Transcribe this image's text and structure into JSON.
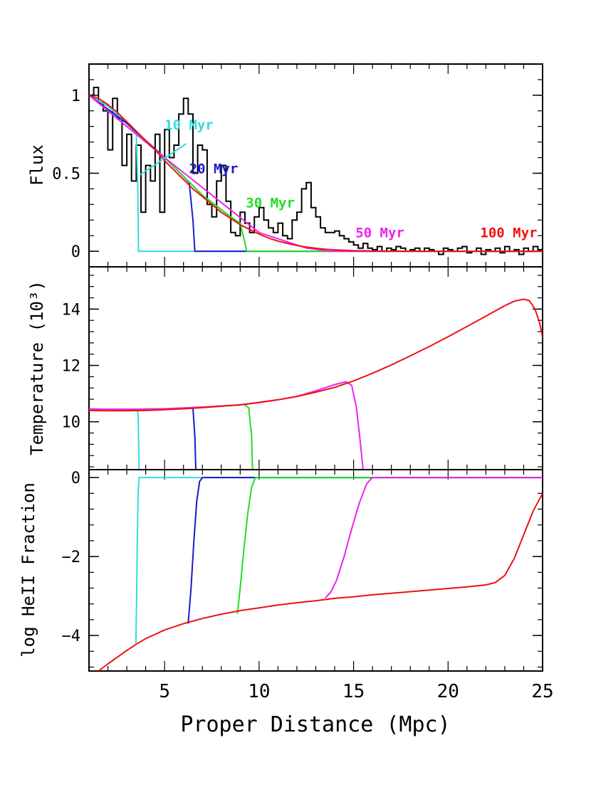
{
  "chart_data": {
    "type": "line",
    "xlabel": "Proper Distance (Mpc)",
    "xlim": [
      1,
      25
    ],
    "xticks": [
      5,
      10,
      15,
      20,
      25
    ],
    "colors": {
      "10 Myr": "#33dddd",
      "20 Myr": "#1a1acc",
      "30 Myr": "#22dd22",
      "50 Myr": "#ee22ee",
      "100 Myr": "#ee1111",
      "observed": "#000000"
    },
    "panels": [
      {
        "id": "flux",
        "ylabel": "Flux",
        "ylim": [
          -0.1,
          1.2
        ],
        "yticks": [
          0,
          0.5,
          1
        ],
        "ytick_labels": [
          "0",
          "0.5",
          "1"
        ],
        "observed_histogram": {
          "x_start": 1.0,
          "bin_width": 0.25,
          "values": [
            1.0,
            1.05,
            0.95,
            0.9,
            0.65,
            0.98,
            0.85,
            0.55,
            0.75,
            0.45,
            0.68,
            0.25,
            0.55,
            0.45,
            0.75,
            0.25,
            0.78,
            0.6,
            0.68,
            0.88,
            0.98,
            0.88,
            0.5,
            0.68,
            0.65,
            0.3,
            0.22,
            0.45,
            0.55,
            0.32,
            0.12,
            0.1,
            0.25,
            0.18,
            0.12,
            0.22,
            0.28,
            0.2,
            0.15,
            0.12,
            0.18,
            0.1,
            0.08,
            0.2,
            0.25,
            0.4,
            0.44,
            0.28,
            0.22,
            0.15,
            0.12,
            0.12,
            0.13,
            0.1,
            0.08,
            0.06,
            0.04,
            0.02,
            0.05,
            0.02,
            0.01,
            0.03,
            0.0,
            0.02,
            0.01,
            0.03,
            0.02,
            0.0,
            0.01,
            0.02,
            0.0,
            0.02,
            0.01,
            0.0,
            -0.02,
            0.02,
            0.01,
            0.0,
            0.02,
            0.03,
            -0.01,
            0.0,
            0.02,
            -0.02,
            0.01,
            0.0,
            0.02,
            -0.01,
            0.03,
            0.0,
            0.01,
            -0.02,
            0.02,
            0.0,
            0.03,
            0.01,
            0.0,
            0.02,
            0.0,
            0.04,
            0.0,
            0.02,
            0.01,
            0.0,
            0.03,
            0.01,
            0.0,
            0.02,
            0.0,
            0.01,
            0.0,
            0.0,
            0.0,
            0.0
          ]
        },
        "series": [
          {
            "name": "10 Myr",
            "color": "#33dddd",
            "x": [
              1.0,
              2.0,
              3.0,
              3.5,
              3.58,
              3.62,
              25
            ],
            "y": [
              1.0,
              0.93,
              0.82,
              0.76,
              0.4,
              0.0,
              0.0
            ]
          },
          {
            "name": "20 Myr",
            "color": "#1a1acc",
            "x": [
              1.0,
              3.0,
              5.0,
              6.0,
              6.3,
              6.5,
              6.6,
              25
            ],
            "y": [
              1.0,
              0.82,
              0.6,
              0.48,
              0.44,
              0.2,
              0.0,
              0.0
            ]
          },
          {
            "name": "30 Myr",
            "color": "#22dd22",
            "x": [
              1.0,
              5.0,
              7.0,
              8.5,
              9.0,
              9.2,
              9.35,
              25
            ],
            "y": [
              1.0,
              0.6,
              0.36,
              0.22,
              0.18,
              0.08,
              0.0,
              0.0
            ]
          },
          {
            "name": "50 Myr",
            "color": "#ee22ee",
            "x": [
              1.0,
              5.0,
              10.0,
              12.5,
              13.2,
              13.5,
              13.7,
              25
            ],
            "y": [
              1.0,
              0.6,
              0.12,
              0.02,
              0.01,
              0.004,
              0.0,
              0.0
            ]
          },
          {
            "name": "100 Myr",
            "color": "#ee1111",
            "x": [
              1.0,
              1.5,
              2.0,
              2.5,
              3.0,
              3.5,
              4.0,
              4.5,
              5.0,
              5.5,
              6.0,
              6.5,
              7.0,
              7.5,
              8.0,
              8.5,
              9.0,
              9.5,
              10.0,
              10.5,
              11.0,
              11.5,
              12.0,
              12.5,
              13.0,
              13.5,
              14.0,
              15.0,
              16.0,
              17.0,
              18.0,
              20.0,
              25.0
            ],
            "y": [
              1.0,
              0.98,
              0.94,
              0.89,
              0.83,
              0.77,
              0.71,
              0.65,
              0.58,
              0.52,
              0.46,
              0.4,
              0.35,
              0.3,
              0.25,
              0.21,
              0.17,
              0.14,
              0.11,
              0.085,
              0.065,
              0.05,
              0.037,
              0.027,
              0.019,
              0.013,
              0.009,
              0.004,
              0.002,
              0.001,
              0.0005,
              0.0,
              0.0
            ]
          }
        ],
        "annotations": [
          {
            "text": "10 Myr",
            "color": "#33dddd",
            "x": 5.0,
            "y": 0.78
          },
          {
            "text": "20 Myr",
            "color": "#1a1acc",
            "x": 6.3,
            "y": 0.5
          },
          {
            "text": "30 Myr",
            "color": "#22dd22",
            "x": 9.3,
            "y": 0.28
          },
          {
            "text": "50 Myr",
            "color": "#ee22ee",
            "x": 15.1,
            "y": 0.09
          },
          {
            "text": "100 Myr",
            "color": "#ee1111",
            "x": 21.7,
            "y": 0.09
          }
        ],
        "annotation_line": {
          "color": "#33dddd",
          "x": [
            3.7,
            6.15
          ],
          "y": [
            0.49,
            0.69
          ]
        }
      },
      {
        "id": "temperature",
        "ylabel": "Temperature (10³)",
        "ylim": [
          8.3,
          15.5
        ],
        "yticks": [
          10,
          12,
          14
        ],
        "ytick_labels": [
          "10",
          "12",
          "14"
        ],
        "series": [
          {
            "name": "10 Myr",
            "color": "#33dddd",
            "x": [
              1.0,
              2.0,
              3.0,
              3.5,
              3.6,
              3.65
            ],
            "y": [
              10.45,
              10.44,
              10.44,
              10.44,
              10.3,
              8.3
            ]
          },
          {
            "name": "20 Myr",
            "color": "#1a1acc",
            "x": [
              1.0,
              3.0,
              5.0,
              6.0,
              6.5,
              6.6,
              6.65
            ],
            "y": [
              10.45,
              10.44,
              10.46,
              10.48,
              10.48,
              9.5,
              8.3
            ]
          },
          {
            "name": "30 Myr",
            "color": "#22dd22",
            "x": [
              1.0,
              3.0,
              5.0,
              7.0,
              8.5,
              9.2,
              9.45,
              9.6,
              9.65
            ],
            "y": [
              10.45,
              10.44,
              10.46,
              10.52,
              10.58,
              10.62,
              10.5,
              9.5,
              8.3
            ]
          },
          {
            "name": "50 Myr",
            "color": "#ee22ee",
            "x": [
              1.0,
              3.0,
              5.0,
              7.0,
              9.0,
              11.0,
              12.0,
              13.0,
              14.0,
              14.6,
              14.9,
              15.15,
              15.35,
              15.5
            ],
            "y": [
              10.45,
              10.44,
              10.46,
              10.52,
              10.6,
              10.78,
              10.9,
              11.1,
              11.32,
              11.42,
              11.3,
              10.5,
              9.3,
              8.3
            ]
          },
          {
            "name": "100 Myr",
            "color": "#ee1111",
            "x": [
              1.0,
              2.0,
              3.0,
              4.0,
              5.0,
              6.0,
              7.0,
              8.0,
              9.0,
              10.0,
              11.0,
              12.0,
              13.0,
              14.0,
              15.0,
              16.0,
              17.0,
              18.0,
              19.0,
              20.0,
              21.0,
              22.0,
              23.0,
              23.5,
              24.0,
              24.3,
              24.6,
              24.85,
              25.0
            ],
            "y": [
              10.4,
              10.39,
              10.39,
              10.4,
              10.43,
              10.46,
              10.5,
              10.55,
              10.6,
              10.68,
              10.78,
              10.9,
              11.05,
              11.22,
              11.45,
              11.72,
              12.02,
              12.34,
              12.67,
              13.02,
              13.38,
              13.75,
              14.12,
              14.28,
              14.35,
              14.3,
              14.0,
              13.5,
              13.0
            ]
          }
        ]
      },
      {
        "id": "heii",
        "ylabel": "log HeII Fraction",
        "ylim": [
          -4.9,
          0.2
        ],
        "yticks": [
          0,
          -2,
          -4
        ],
        "ytick_labels": [
          "0",
          "−2",
          "−4"
        ],
        "series": [
          {
            "name": "10 Myr",
            "color": "#33dddd",
            "x": [
              3.48,
              3.52,
              3.56,
              3.6,
              3.65,
              25
            ],
            "y": [
              -4.2,
              -3.0,
              -1.5,
              -0.4,
              0.0,
              0.0
            ]
          },
          {
            "name": "20 Myr",
            "color": "#1a1acc",
            "x": [
              6.25,
              6.4,
              6.55,
              6.7,
              6.85,
              7.0,
              25
            ],
            "y": [
              -3.7,
              -2.8,
              -1.6,
              -0.6,
              -0.1,
              0.0,
              0.0
            ]
          },
          {
            "name": "30 Myr",
            "color": "#22dd22",
            "x": [
              8.85,
              9.0,
              9.2,
              9.4,
              9.6,
              9.8,
              25
            ],
            "y": [
              -3.45,
              -2.8,
              -1.8,
              -0.9,
              -0.25,
              0.0,
              0.0
            ]
          },
          {
            "name": "50 Myr",
            "color": "#ee22ee",
            "x": [
              13.5,
              13.8,
              14.1,
              14.5,
              14.9,
              15.3,
              15.7,
              16.0,
              25
            ],
            "y": [
              -3.05,
              -2.9,
              -2.6,
              -2.0,
              -1.3,
              -0.65,
              -0.15,
              0.0,
              0.0
            ]
          },
          {
            "name": "100 Myr",
            "color": "#ee1111",
            "x": [
              1.5,
              2.0,
              2.5,
              3.0,
              3.5,
              4.0,
              5.0,
              6.0,
              7.0,
              8.0,
              9.0,
              10.0,
              11.0,
              12.0,
              13.0,
              14.0,
              15.0,
              16.0,
              17.0,
              18.0,
              19.0,
              20.0,
              21.0,
              22.0,
              22.5,
              23.0,
              23.5,
              24.0,
              24.5,
              25.0
            ],
            "y": [
              -4.9,
              -4.72,
              -4.55,
              -4.38,
              -4.22,
              -4.08,
              -3.86,
              -3.7,
              -3.57,
              -3.46,
              -3.37,
              -3.3,
              -3.23,
              -3.17,
              -3.12,
              -3.06,
              -3.02,
              -2.97,
              -2.93,
              -2.89,
              -2.85,
              -2.81,
              -2.77,
              -2.72,
              -2.66,
              -2.48,
              -2.05,
              -1.45,
              -0.85,
              -0.4
            ]
          }
        ]
      }
    ]
  }
}
